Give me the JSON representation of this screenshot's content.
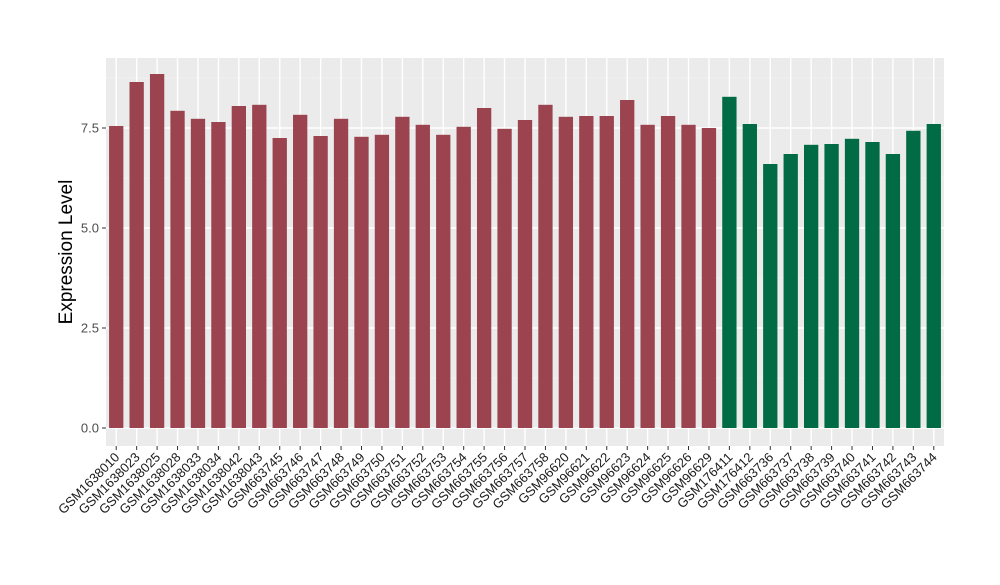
{
  "chart_data": {
    "type": "bar",
    "title": "",
    "xlabel": "",
    "ylabel": "Expression Level",
    "ylim": [
      -0.1,
      9.0
    ],
    "yticks": [
      "0.0",
      "2.5",
      "5.0",
      "7.5"
    ],
    "ytick_values": [
      0,
      2.5,
      5.0,
      7.5
    ],
    "grid": true,
    "legend": "none",
    "colors": {
      "group1": "#9B4450",
      "group2": "#006B44",
      "panel": "#EBEBEB",
      "gridline": "#FFFFFF"
    },
    "categories": [
      "GSM1638010",
      "GSM1638023",
      "GSM1638025",
      "GSM1638028",
      "GSM1638033",
      "GSM1638034",
      "GSM1638042",
      "GSM1638043",
      "GSM663745",
      "GSM663746",
      "GSM663747",
      "GSM663748",
      "GSM663749",
      "GSM663750",
      "GSM663751",
      "GSM663752",
      "GSM663753",
      "GSM663754",
      "GSM663755",
      "GSM663756",
      "GSM663757",
      "GSM663758",
      "GSM96620",
      "GSM96621",
      "GSM96622",
      "GSM96623",
      "GSM96624",
      "GSM96625",
      "GSM96626",
      "GSM96629",
      "GSM176411",
      "GSM176412",
      "GSM663736",
      "GSM663737",
      "GSM663738",
      "GSM663739",
      "GSM663740",
      "GSM663741",
      "GSM663742",
      "GSM663743",
      "GSM663744"
    ],
    "values": [
      7.55,
      8.65,
      8.85,
      7.93,
      7.73,
      7.65,
      8.05,
      8.08,
      7.25,
      7.83,
      7.3,
      7.73,
      7.28,
      7.33,
      7.78,
      7.58,
      7.33,
      7.53,
      8.0,
      7.48,
      7.7,
      8.08,
      7.78,
      7.8,
      7.8,
      8.2,
      7.58,
      7.8,
      7.58,
      7.5,
      8.28,
      7.6,
      6.6,
      6.85,
      7.08,
      7.1,
      7.23,
      7.15,
      6.85,
      7.43,
      7.6
    ],
    "groups": [
      1,
      1,
      1,
      1,
      1,
      1,
      1,
      1,
      1,
      1,
      1,
      1,
      1,
      1,
      1,
      1,
      1,
      1,
      1,
      1,
      1,
      1,
      1,
      1,
      1,
      1,
      1,
      1,
      1,
      1,
      2,
      2,
      2,
      2,
      2,
      2,
      2,
      2,
      2,
      2,
      2
    ]
  }
}
